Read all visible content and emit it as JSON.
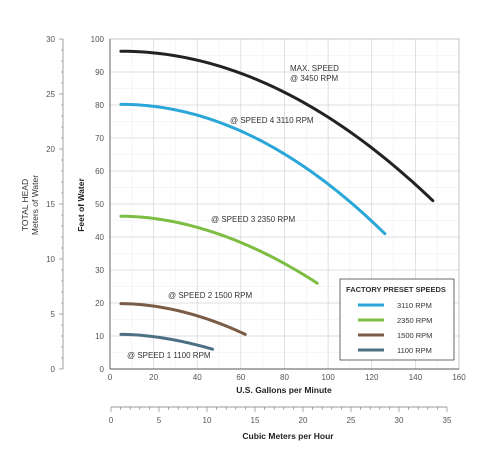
{
  "chart_data": {
    "type": "line",
    "x": {
      "label": "U.S. Gallons per Minute",
      "range": [
        0,
        160
      ],
      "ticks": [
        0,
        20,
        40,
        60,
        80,
        100,
        120,
        140,
        160
      ]
    },
    "x2": {
      "label": "Cubic Meters per Hour",
      "range": [
        0,
        35
      ],
      "ticks": [
        0,
        5,
        10,
        15,
        20,
        25,
        30,
        35
      ]
    },
    "y": {
      "label": "Feet of Water",
      "range": [
        0,
        100
      ],
      "ticks": [
        0,
        10,
        20,
        30,
        40,
        50,
        60,
        70,
        80,
        90,
        100
      ]
    },
    "y2": {
      "label_line1": "TOTAL HEAD",
      "label_line2": "Meters of Water",
      "range": [
        0,
        30
      ],
      "ticks": [
        0,
        5,
        10,
        15,
        20,
        25,
        30
      ]
    },
    "grid": true,
    "legend": {
      "title": "FACTORY PRESET SPEEDS",
      "placement": "bottom-right",
      "entries": [
        {
          "label": "3110 RPM",
          "color": "#2aa7d8"
        },
        {
          "label": "2350 RPM",
          "color": "#7cbd42"
        },
        {
          "label": "1500 RPM",
          "color": "#7a5c46"
        },
        {
          "label": "1100 RPM",
          "color": "#4c6f84"
        }
      ]
    },
    "series": [
      {
        "name": "MAX. SPEED @ 3450 RPM",
        "color": "#222222",
        "x": [
          5,
          20,
          40,
          60,
          80,
          100,
          120,
          140,
          148
        ],
        "y": [
          96,
          95,
          92,
          87,
          80,
          72,
          61,
          47,
          51
        ],
        "curve": {
          "x0": 5,
          "y0": 96.3,
          "x1": 148,
          "y1": 51,
          "k": 2.0
        }
      },
      {
        "name": "@ SPEED 4 3110 RPM",
        "color": "#2aa7d8",
        "x": [
          5,
          20,
          40,
          60,
          80,
          100,
          120,
          126
        ],
        "y": [
          80,
          79,
          76,
          70,
          62,
          51,
          43,
          41
        ],
        "curve": {
          "x0": 5,
          "y0": 80.2,
          "x1": 126,
          "y1": 41,
          "k": 2.0
        }
      },
      {
        "name": "@ SPEED 3 2350 RPM",
        "color": "#7cbd42",
        "x": [
          5,
          20,
          40,
          60,
          80,
          95
        ],
        "y": [
          46,
          45,
          41,
          36,
          30,
          26
        ],
        "curve": {
          "x0": 5,
          "y0": 46.3,
          "x1": 95,
          "y1": 26,
          "k": 1.9
        }
      },
      {
        "name": "@ SPEED 2 1500 RPM",
        "color": "#7a5c46",
        "x": [
          5,
          20,
          40,
          60,
          62
        ],
        "y": [
          20,
          19.3,
          16.5,
          12,
          10.5
        ],
        "curve": {
          "x0": 5,
          "y0": 19.8,
          "x1": 62,
          "y1": 10.5,
          "k": 1.9
        }
      },
      {
        "name": "@ SPEED 1 1100 RPM",
        "color": "#4c6f84",
        "x": [
          5,
          20,
          35,
          47
        ],
        "y": [
          10.5,
          10,
          8,
          6
        ],
        "curve": {
          "x0": 5,
          "y0": 10.5,
          "x1": 47,
          "y1": 6,
          "k": 1.8
        }
      }
    ],
    "annotations": {
      "max_line1": "MAX. SPEED",
      "max_line2": "@ 3450 RPM",
      "speed4": "@ SPEED 4 3110 RPM",
      "speed3": "@ SPEED 3 2350 RPM",
      "speed2": "@ SPEED 2 1500 RPM",
      "speed1": "@ SPEED 1 1100 RPM"
    }
  }
}
